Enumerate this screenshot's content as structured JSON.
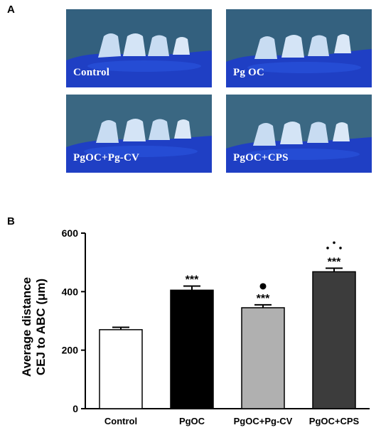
{
  "panels": {
    "a_label": "A",
    "b_label": "B"
  },
  "photos": [
    {
      "label": "Control"
    },
    {
      "label": "Pg OC"
    },
    {
      "label": "PgOC+Pg-CV"
    },
    {
      "label": "PgOC+CPS"
    }
  ],
  "colors": {
    "photo_bg_top": "#2f5b7a",
    "photo_bg_bottom": "#3d6a85",
    "jaw": "#1f3fc4",
    "tooth": "#c8dcf2"
  },
  "chart_data": {
    "type": "bar",
    "categories": [
      "Control",
      "PgOC",
      "PgOC+Pg-CV",
      "PgOC+CPS"
    ],
    "values": [
      270,
      405,
      345,
      468
    ],
    "errors": [
      8,
      14,
      10,
      12
    ],
    "bar_colors": [
      "#ffffff",
      "#000000",
      "#b0b0b0",
      "#3c3c3c"
    ],
    "annotations": [
      {
        "category": "PgOC",
        "text": "***",
        "marker": ""
      },
      {
        "category": "PgOC+Pg-CV",
        "text": "***",
        "marker": "dot"
      },
      {
        "category": "PgOC+CPS",
        "text": "***",
        "marker": "triangle-dots"
      }
    ],
    "ylabel_line1": "Average distance",
    "ylabel_line2": "CEJ to ABC (μm)",
    "ylim": [
      0,
      600
    ],
    "yticks": [
      "0",
      "200",
      "400",
      "600"
    ]
  }
}
